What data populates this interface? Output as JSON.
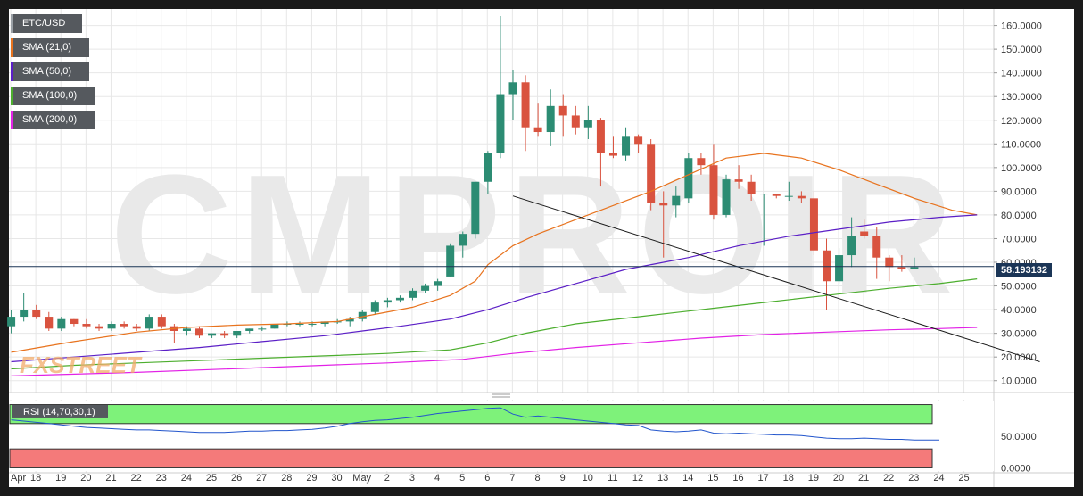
{
  "chart_data": {
    "type": "candlestick",
    "symbol": "ETC/USD",
    "current_price": "58.193132",
    "watermark": "CMPROIR",
    "brand_logo": "FXSTREET",
    "y_axis": {
      "min": 5,
      "max": 167,
      "ticks": [
        10,
        20,
        30,
        40,
        50,
        60,
        70,
        80,
        90,
        100,
        110,
        120,
        130,
        140,
        150,
        160
      ],
      "tick_labels": [
        "10.0000",
        "20.0000",
        "30.0000",
        "40.0000",
        "50.0000",
        "60.0000",
        "70.0000",
        "80.0000",
        "90.0000",
        "100.0000",
        "110.0000",
        "120.0000",
        "130.0000",
        "140.0000",
        "150.0000",
        "160.0000"
      ]
    },
    "x_axis": {
      "labels": [
        "Apr",
        "18",
        "19",
        "20",
        "21",
        "22",
        "23",
        "24",
        "25",
        "26",
        "27",
        "28",
        "29",
        "30",
        "May",
        "2",
        "3",
        "4",
        "5",
        "6",
        "7",
        "8",
        "9",
        "10",
        "11",
        "12",
        "13",
        "14",
        "15",
        "16",
        "17",
        "18",
        "19",
        "20",
        "21",
        "22",
        "23",
        "24",
        "25"
      ]
    },
    "candles": [
      {
        "o": 33,
        "h": 40,
        "l": 30,
        "c": 37
      },
      {
        "o": 37,
        "h": 47,
        "l": 35,
        "c": 40
      },
      {
        "o": 40,
        "h": 42,
        "l": 36,
        "c": 37
      },
      {
        "o": 37,
        "h": 39,
        "l": 31,
        "c": 32
      },
      {
        "o": 32,
        "h": 37,
        "l": 31,
        "c": 36
      },
      {
        "o": 36,
        "h": 36,
        "l": 33,
        "c": 34
      },
      {
        "o": 34,
        "h": 36,
        "l": 32,
        "c": 33
      },
      {
        "o": 33,
        "h": 34,
        "l": 31,
        "c": 32
      },
      {
        "o": 32,
        "h": 35,
        "l": 31,
        "c": 34
      },
      {
        "o": 34,
        "h": 35,
        "l": 32,
        "c": 33
      },
      {
        "o": 33,
        "h": 34,
        "l": 31,
        "c": 32
      },
      {
        "o": 32,
        "h": 38,
        "l": 31,
        "c": 37
      },
      {
        "o": 37,
        "h": 38,
        "l": 32,
        "c": 33
      },
      {
        "o": 33,
        "h": 34,
        "l": 26,
        "c": 31
      },
      {
        "o": 31,
        "h": 33,
        "l": 29,
        "c": 32
      },
      {
        "o": 32,
        "h": 33,
        "l": 28,
        "c": 29
      },
      {
        "o": 29,
        "h": 30,
        "l": 28,
        "c": 30
      },
      {
        "o": 30,
        "h": 31,
        "l": 28,
        "c": 29
      },
      {
        "o": 29,
        "h": 31,
        "l": 28,
        "c": 31
      },
      {
        "o": 31,
        "h": 32,
        "l": 30,
        "c": 32
      },
      {
        "o": 32,
        "h": 33,
        "l": 31,
        "c": 32
      },
      {
        "o": 32,
        "h": 34,
        "l": 32,
        "c": 34
      },
      {
        "o": 34,
        "h": 35,
        "l": 33,
        "c": 34
      },
      {
        "o": 34,
        "h": 35,
        "l": 33,
        "c": 34
      },
      {
        "o": 34,
        "h": 35,
        "l": 33,
        "c": 34
      },
      {
        "o": 34,
        "h": 35,
        "l": 33,
        "c": 35
      },
      {
        "o": 35,
        "h": 36,
        "l": 34,
        "c": 35
      },
      {
        "o": 35,
        "h": 37,
        "l": 33,
        "c": 36
      },
      {
        "o": 36,
        "h": 40,
        "l": 35,
        "c": 39
      },
      {
        "o": 39,
        "h": 44,
        "l": 38,
        "c": 43
      },
      {
        "o": 43,
        "h": 45,
        "l": 41,
        "c": 44
      },
      {
        "o": 44,
        "h": 46,
        "l": 43,
        "c": 45
      },
      {
        "o": 45,
        "h": 49,
        "l": 44,
        "c": 48
      },
      {
        "o": 48,
        "h": 51,
        "l": 47,
        "c": 50
      },
      {
        "o": 50,
        "h": 53,
        "l": 48,
        "c": 52
      },
      {
        "o": 54,
        "h": 68,
        "l": 54,
        "c": 67
      },
      {
        "o": 67,
        "h": 73,
        "l": 62,
        "c": 72
      },
      {
        "o": 72,
        "h": 94,
        "l": 70,
        "c": 94
      },
      {
        "o": 94,
        "h": 107,
        "l": 89,
        "c": 106
      },
      {
        "o": 106,
        "h": 164,
        "l": 104,
        "c": 131
      },
      {
        "o": 131,
        "h": 141,
        "l": 120,
        "c": 136
      },
      {
        "o": 136,
        "h": 139,
        "l": 107,
        "c": 117
      },
      {
        "o": 117,
        "h": 127,
        "l": 113,
        "c": 115
      },
      {
        "o": 115,
        "h": 133,
        "l": 109,
        "c": 126
      },
      {
        "o": 126,
        "h": 131,
        "l": 113,
        "c": 122
      },
      {
        "o": 122,
        "h": 126,
        "l": 114,
        "c": 117
      },
      {
        "o": 117,
        "h": 126,
        "l": 112,
        "c": 120
      },
      {
        "o": 120,
        "h": 121,
        "l": 92,
        "c": 106
      },
      {
        "o": 106,
        "h": 113,
        "l": 104,
        "c": 105
      },
      {
        "o": 105,
        "h": 117,
        "l": 103,
        "c": 113
      },
      {
        "o": 113,
        "h": 114,
        "l": 106,
        "c": 110
      },
      {
        "o": 110,
        "h": 112,
        "l": 82,
        "c": 85
      },
      {
        "o": 85,
        "h": 90,
        "l": 62,
        "c": 84
      },
      {
        "o": 84,
        "h": 92,
        "l": 79,
        "c": 88
      },
      {
        "o": 87,
        "h": 106,
        "l": 85,
        "c": 104
      },
      {
        "o": 104,
        "h": 106,
        "l": 97,
        "c": 101
      },
      {
        "o": 101,
        "h": 110,
        "l": 78,
        "c": 80
      },
      {
        "o": 80,
        "h": 97,
        "l": 79,
        "c": 95
      },
      {
        "o": 95,
        "h": 101,
        "l": 91,
        "c": 94
      },
      {
        "o": 94,
        "h": 97,
        "l": 86,
        "c": 89
      },
      {
        "o": 89,
        "h": 89,
        "l": 67,
        "c": 89
      },
      {
        "o": 89,
        "h": 89,
        "l": 87,
        "c": 88
      },
      {
        "o": 88,
        "h": 94,
        "l": 86,
        "c": 88
      },
      {
        "o": 88,
        "h": 90,
        "l": 85,
        "c": 87
      },
      {
        "o": 87,
        "h": 90,
        "l": 63,
        "c": 65
      },
      {
        "o": 65,
        "h": 70,
        "l": 40,
        "c": 52
      },
      {
        "o": 52,
        "h": 66,
        "l": 51,
        "c": 63
      },
      {
        "o": 63,
        "h": 79,
        "l": 58,
        "c": 71
      },
      {
        "o": 73,
        "h": 78,
        "l": 70,
        "c": 71
      },
      {
        "o": 71,
        "h": 75,
        "l": 53,
        "c": 62
      },
      {
        "o": 62,
        "h": 63,
        "l": 52,
        "c": 58
      },
      {
        "o": 58,
        "h": 63,
        "l": 56,
        "c": 57
      },
      {
        "o": 57,
        "h": 62,
        "l": 57,
        "c": 58
      }
    ],
    "series": [
      {
        "name": "SMA (21,0)",
        "color": "#e8731e",
        "values": [
          [
            0,
            22
          ],
          [
            5,
            26.5
          ],
          [
            10,
            30.5
          ],
          [
            14,
            32.5
          ],
          [
            18,
            33.5
          ],
          [
            22,
            34
          ],
          [
            26,
            35
          ],
          [
            29,
            38
          ],
          [
            32,
            41
          ],
          [
            35,
            46
          ],
          [
            37,
            52
          ],
          [
            38,
            59
          ],
          [
            40,
            67
          ],
          [
            42,
            72
          ],
          [
            45,
            78
          ],
          [
            48,
            84
          ],
          [
            51,
            90
          ],
          [
            54,
            97
          ],
          [
            57,
            104
          ],
          [
            60,
            106
          ],
          [
            63,
            104
          ],
          [
            66,
            99
          ],
          [
            69,
            93
          ],
          [
            72,
            87
          ],
          [
            75,
            82
          ],
          [
            77,
            80
          ]
        ]
      },
      {
        "name": "SMA (50,0)",
        "color": "#5b1fc6",
        "values": [
          [
            0,
            18
          ],
          [
            5,
            20
          ],
          [
            10,
            22
          ],
          [
            15,
            24
          ],
          [
            20,
            26.5
          ],
          [
            25,
            29
          ],
          [
            28,
            31
          ],
          [
            31,
            33
          ],
          [
            35,
            36
          ],
          [
            38,
            40
          ],
          [
            41,
            45
          ],
          [
            45,
            51
          ],
          [
            49,
            57
          ],
          [
            54,
            62
          ],
          [
            58,
            67
          ],
          [
            62,
            71
          ],
          [
            66,
            74
          ],
          [
            70,
            77
          ],
          [
            74,
            79
          ],
          [
            77,
            80
          ]
        ]
      },
      {
        "name": "SMA (100,0)",
        "color": "#4cae2e",
        "values": [
          [
            0,
            15
          ],
          [
            5,
            16.5
          ],
          [
            10,
            17.5
          ],
          [
            15,
            18.5
          ],
          [
            20,
            19.5
          ],
          [
            25,
            20.5
          ],
          [
            30,
            21.5
          ],
          [
            35,
            23
          ],
          [
            38,
            26
          ],
          [
            41,
            30
          ],
          [
            45,
            34
          ],
          [
            50,
            37
          ],
          [
            55,
            40
          ],
          [
            60,
            43
          ],
          [
            65,
            46
          ],
          [
            70,
            49
          ],
          [
            74,
            51
          ],
          [
            77,
            53
          ]
        ]
      },
      {
        "name": "SMA (200,0)",
        "color": "#e222e6",
        "values": [
          [
            0,
            12
          ],
          [
            10,
            13.5
          ],
          [
            20,
            15.5
          ],
          [
            30,
            17.5
          ],
          [
            36,
            19
          ],
          [
            40,
            21.5
          ],
          [
            45,
            24
          ],
          [
            50,
            26
          ],
          [
            55,
            28
          ],
          [
            60,
            29.5
          ],
          [
            65,
            30.5
          ],
          [
            70,
            31.5
          ],
          [
            74,
            32
          ],
          [
            77,
            32.5
          ]
        ]
      }
    ],
    "trendline": {
      "color": "#1a1a1a",
      "start": [
        40,
        88
      ],
      "end": [
        82,
        18
      ]
    },
    "rsi": {
      "label": "RSI (14,70,30,1)",
      "ticks": [
        0,
        50
      ],
      "tick_labels": [
        "0.0000",
        "50.0000"
      ],
      "overbought": 70,
      "oversold": 30,
      "values": [
        76,
        74,
        72,
        70,
        68,
        66,
        64,
        63,
        62,
        61,
        60,
        60,
        59,
        58,
        57,
        56,
        56,
        56,
        57,
        58,
        58,
        59,
        59,
        60,
        61,
        63,
        66,
        70,
        73,
        75,
        76,
        78,
        80,
        83,
        86,
        88,
        90,
        92,
        94,
        95,
        85,
        80,
        82,
        80,
        78,
        76,
        74,
        72,
        70,
        68,
        67,
        60,
        58,
        57,
        58,
        60,
        55,
        54,
        55,
        54,
        53,
        52,
        52,
        51,
        49,
        47,
        46,
        46,
        47,
        46,
        45,
        45,
        44,
        44,
        44
      ],
      "y_min": -5,
      "y_max": 105
    },
    "legend": [
      {
        "name": "ETC/USD",
        "color": "#55595e"
      },
      {
        "name": "SMA (21,0)",
        "color": "#e8731e"
      },
      {
        "name": "SMA (50,0)",
        "color": "#5b1fc6"
      },
      {
        "name": "SMA (100,0)",
        "color": "#4cae2e"
      },
      {
        "name": "SMA (200,0)",
        "color": "#e222e6"
      }
    ],
    "colors": {
      "up": "#2c8c73",
      "down": "#d9533f",
      "grid": "#e7e7e7"
    }
  }
}
